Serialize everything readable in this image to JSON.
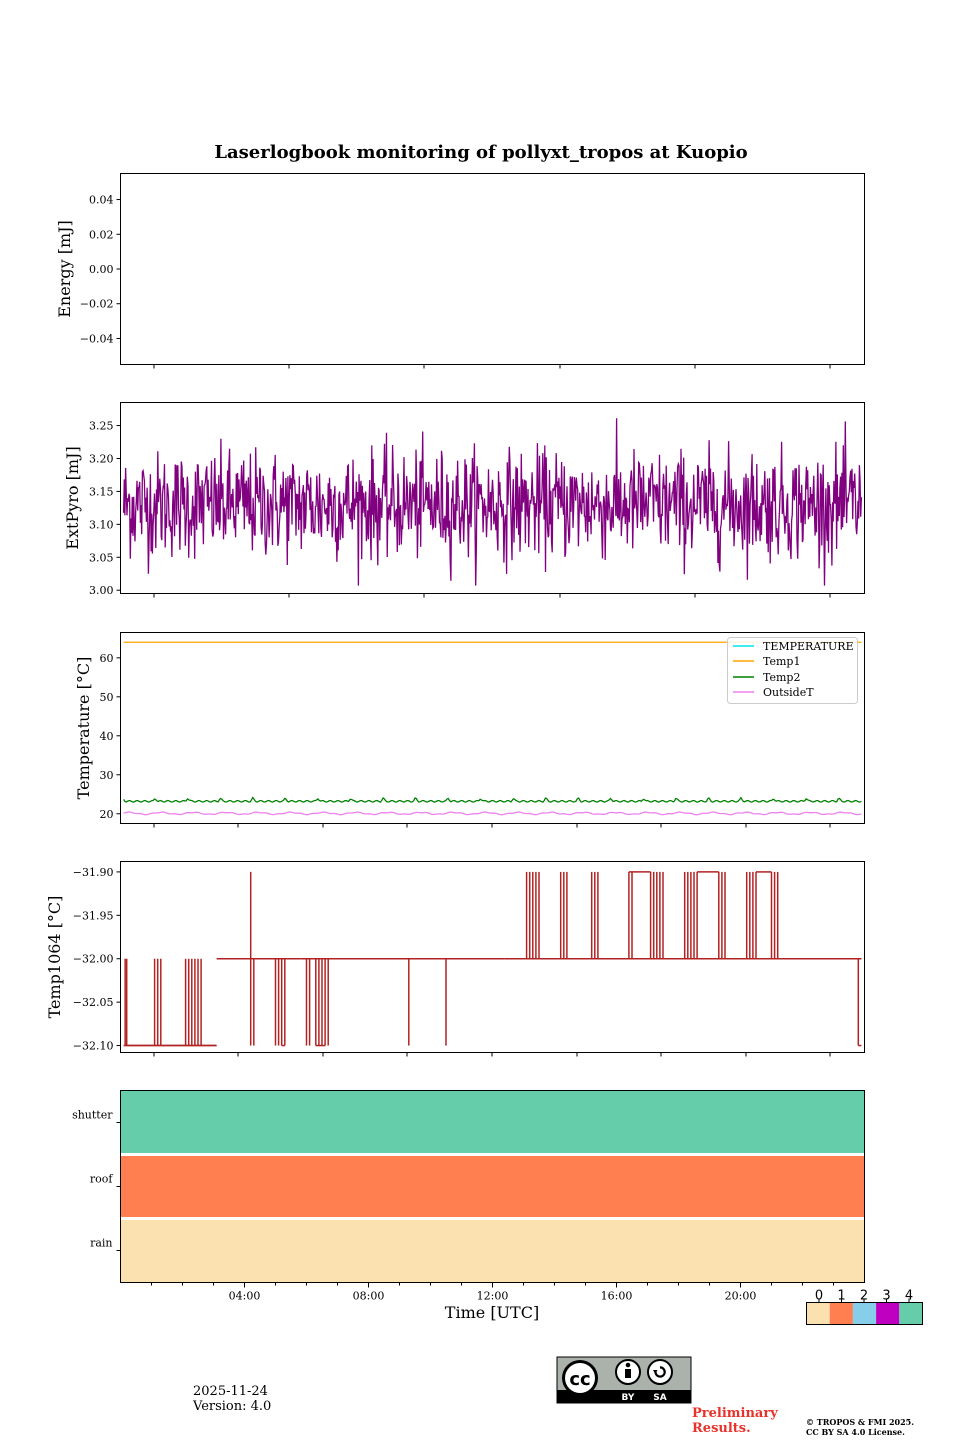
{
  "figure": {
    "title": "Laserlogbook monitoring of pollyxt_tropos at Kuopio",
    "xlabel": "Time [UTC]"
  },
  "chart_data": [
    {
      "type": "line",
      "name": "energy",
      "ylabel": "Energy [mJ]",
      "ylim": [
        -0.055,
        0.055
      ],
      "yticks": [
        0.04,
        0.02,
        0.0,
        -0.02,
        -0.04
      ],
      "ytick_labels": [
        "0.04",
        "0.02",
        "0.00",
        "−0.02",
        "−0.04"
      ],
      "series": []
    },
    {
      "type": "line",
      "name": "extpyro",
      "ylabel": "ExtPyro [mJ]",
      "ylim": [
        2.995,
        3.285
      ],
      "yticks": [
        3.25,
        3.2,
        3.15,
        3.1,
        3.05,
        3.0
      ],
      "ytick_labels": [
        "3.25",
        "3.20",
        "3.15",
        "3.10",
        "3.05",
        "3.00"
      ],
      "series": [
        {
          "name": "ExtPyro",
          "color": "#800080",
          "x_range_hours": [
            0.1,
            23.9
          ],
          "mean": 3.13,
          "sd": 0.04,
          "min": 3.007,
          "max": 3.272
        }
      ]
    },
    {
      "type": "line",
      "name": "temperature",
      "ylabel": "Temperature [°C]",
      "ylim": [
        17.5,
        66.5
      ],
      "yticks": [
        60,
        50,
        40,
        30,
        20
      ],
      "ytick_labels": [
        "60",
        "50",
        "40",
        "30",
        "20"
      ],
      "legend_position": "top-right",
      "series": [
        {
          "name": "TEMPERATURE",
          "color": "#00e5e5",
          "values": []
        },
        {
          "name": "Temp1",
          "color": "#ffa500",
          "x_range_hours": [
            0.1,
            23.9
          ],
          "value": 64.0
        },
        {
          "name": "Temp2",
          "color": "#008000",
          "x_range_hours": [
            0.1,
            23.9
          ],
          "value": 23.2,
          "peaks": 24.0
        },
        {
          "name": "OutsideT",
          "color": "#ee82ee",
          "x_range_hours": [
            0.1,
            23.9
          ],
          "value": 20.1
        }
      ]
    },
    {
      "type": "line",
      "name": "temp1064",
      "ylabel": "Temp1064 [°C]",
      "ylim": [
        -32.108,
        -31.888
      ],
      "yticks": [
        -31.9,
        -31.95,
        -32.0,
        -32.05,
        -32.1
      ],
      "ytick_labels": [
        "−31.90",
        "−31.95",
        "−32.00",
        "−32.05",
        "−32.10"
      ],
      "series": [
        {
          "name": "Temp1064",
          "color": "#b22222",
          "levels": [
            -32.1,
            -32.0,
            -31.9
          ],
          "segments": [
            {
              "from": 0.1,
              "to": 3.1,
              "base": -32.1,
              "to_level": -32.0,
              "spikes": [
                0.15,
                0.2,
                1.1,
                1.2,
                1.3,
                2.1,
                2.2,
                2.3,
                2.4,
                2.5,
                2.6
              ]
            },
            {
              "from": 3.1,
              "to": 5.8,
              "base": -32.0,
              "to_level": -32.1,
              "spikes": [
                4.3,
                5.0,
                5.1,
                5.2,
                5.3
              ]
            },
            {
              "from": 5.8,
              "to": 7.5,
              "base": -32.0,
              "to_level": -32.1,
              "spikes": [
                6.0,
                6.1,
                6.3,
                6.4,
                6.5,
                6.6,
                6.7
              ]
            },
            {
              "from": 7.5,
              "to": 12.4,
              "base": -32.0,
              "to_level": -32.1,
              "spikes": [
                9.3,
                10.5
              ]
            },
            {
              "from": 12.4,
              "to": 23.9,
              "base": -32.0,
              "to_level": -31.9,
              "spikes": [
                13.1,
                13.2,
                13.3,
                13.4,
                13.5,
                14.2,
                14.3,
                14.4,
                15.2,
                15.3,
                15.4,
                16.4,
                16.5,
                17.1,
                17.2,
                17.3,
                17.4,
                17.5,
                18.2,
                18.3,
                18.4,
                18.5,
                18.6,
                19.3,
                19.4,
                19.5,
                20.2,
                20.3,
                20.4,
                20.5,
                21.0,
                21.1,
                21.2
              ]
            },
            {
              "from": 4.2,
              "to": 4.2,
              "base": -32.1,
              "to_level": -31.9,
              "spikes": [
                4.2
              ]
            },
            {
              "from": 23.8,
              "to": 23.9,
              "base": -32.0,
              "to_level": -32.1,
              "spikes": [
                23.8
              ]
            }
          ]
        }
      ]
    },
    {
      "type": "heatmap",
      "name": "status",
      "rows": [
        "shutter",
        "roof",
        "rain"
      ],
      "row_values": [
        4,
        1,
        0
      ],
      "xlim_hours": [
        0,
        24
      ],
      "xticks_hours": [
        4,
        8,
        12,
        16,
        20
      ],
      "xtick_labels": [
        "04:00",
        "08:00",
        "12:00",
        "16:00",
        "20:00"
      ]
    }
  ],
  "colorbar": {
    "ticks": [
      "0",
      "1",
      "2",
      "3",
      "4"
    ],
    "colors": [
      "#fce1b0",
      "#ff7f50",
      "#87ceeb",
      "#c000c0",
      "#66cdaa"
    ]
  },
  "footer": {
    "date": "2025-11-24",
    "version": "Version: 4.0",
    "preliminary_line1": "Preliminary",
    "preliminary_line2": "Results.",
    "copyright_line1": "© TROPOS & FMI 2025.",
    "copyright_line2": "CC BY SA 4.0 License.",
    "license_by": "BY",
    "license_sa": "SA",
    "license_cc": "cc"
  }
}
